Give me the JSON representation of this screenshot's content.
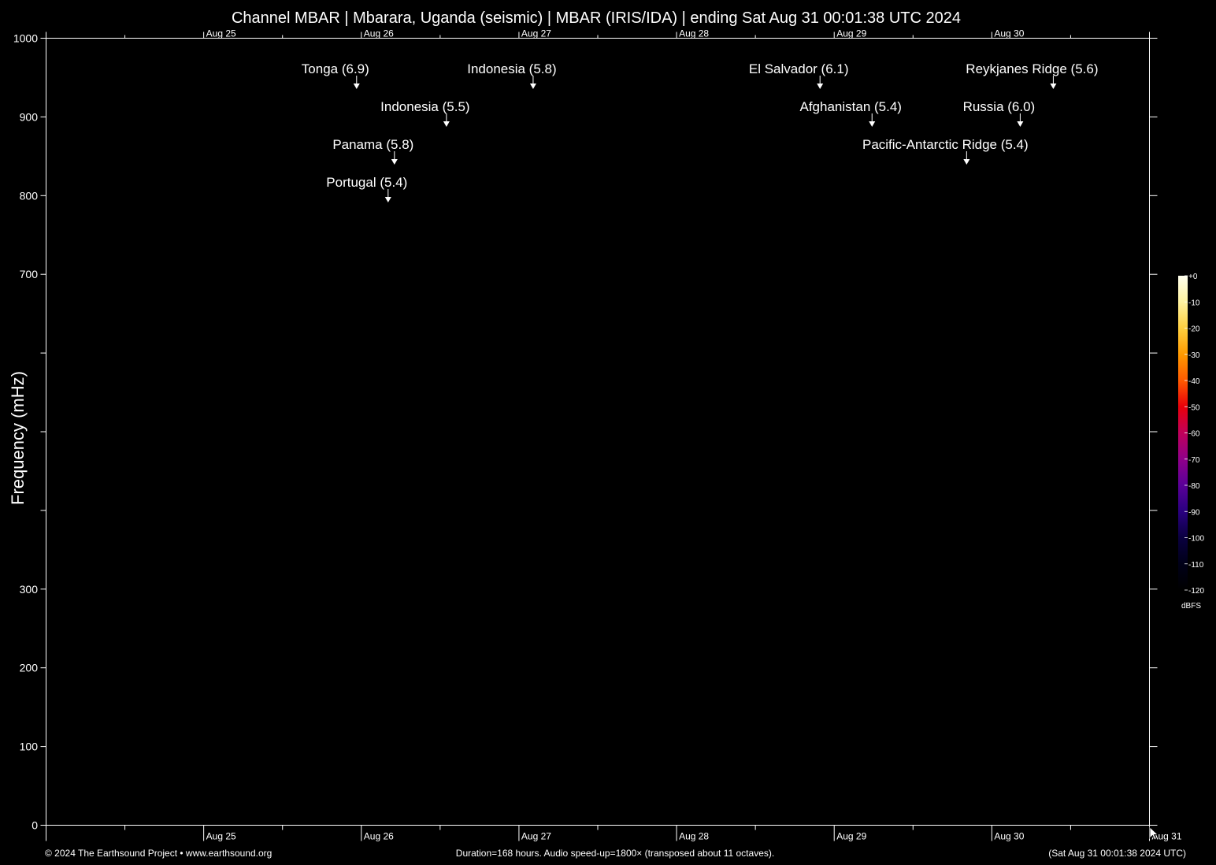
{
  "chart_data": {
    "type": "heatmap",
    "title": "Channel MBAR | Mbarara, Uganda (seismic) | MBAR (IRIS/IDA) | ending Sat Aug 31 00:01:38 UTC 2024",
    "ylabel": "Frequency (mHz)",
    "xlabel": "",
    "ylim": [
      0,
      1000
    ],
    "xlim_days": [
      0,
      7
    ],
    "y_major_ticks": [
      0,
      100,
      200,
      300,
      400,
      500,
      600,
      700,
      800,
      900,
      1000
    ],
    "y_labeled_ticks": [
      "0",
      "100",
      "200",
      "300",
      "700",
      "800",
      "900",
      "1000"
    ],
    "x_day_ticks": [
      {
        "day": 1,
        "label": "Aug 25"
      },
      {
        "day": 2,
        "label": "Aug 26"
      },
      {
        "day": 3,
        "label": "Aug 27"
      },
      {
        "day": 4,
        "label": "Aug 28"
      },
      {
        "day": 5,
        "label": "Aug 29"
      },
      {
        "day": 6,
        "label": "Aug 30"
      },
      {
        "day": 7,
        "label": "Aug 31"
      }
    ],
    "events": [
      {
        "label": "Tonga (6.9)",
        "day": 1.97,
        "row": 0
      },
      {
        "label": "Indonesia (5.8)",
        "day": 3.09,
        "row": 0
      },
      {
        "label": "El Salvador (6.1)",
        "day": 4.91,
        "row": 0
      },
      {
        "label": "Reykjanes Ridge (5.6)",
        "day": 6.39,
        "row": 0
      },
      {
        "label": "Indonesia (5.5)",
        "day": 2.54,
        "row": 1
      },
      {
        "label": "Afghanistan (5.4)",
        "day": 5.24,
        "row": 1
      },
      {
        "label": "Russia (6.0)",
        "day": 6.18,
        "row": 1
      },
      {
        "label": "Panama (5.8)",
        "day": 2.21,
        "row": 2
      },
      {
        "label": "Pacific-Antarctic Ridge (5.4)",
        "day": 5.84,
        "row": 2
      },
      {
        "label": "Portugal (5.4)",
        "day": 2.17,
        "row": 3
      }
    ],
    "colorbar": {
      "unit": "dBFS",
      "range": [
        -120,
        0
      ],
      "ticks": [
        "+0",
        "-10",
        "-20",
        "-30",
        "-40",
        "-50",
        "-60",
        "-70",
        "-80",
        "-90",
        "-100",
        "-110",
        "-120"
      ],
      "stops": [
        "#ffffee",
        "#fff3a0",
        "#ffd040",
        "#ff9a00",
        "#ff5a00",
        "#e8000a",
        "#c0005a",
        "#90008a",
        "#5a0098",
        "#2a0080",
        "#0a0040",
        "#000018",
        "#000000"
      ]
    },
    "footer": {
      "left": "© 2024 The Earthsound Project • www.earthsound.org",
      "center": "Duration=168 hours. Audio speed-up=1800× (transposed about 11 octaves).",
      "right": "(Sat Aug 31 00:01:38 2024 UTC)"
    }
  }
}
